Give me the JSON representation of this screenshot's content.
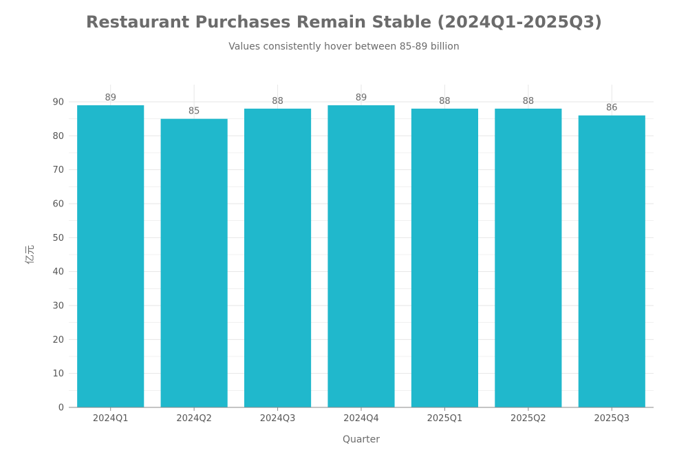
{
  "chart_data": {
    "type": "bar",
    "title": "Restaurant Purchases Remain Stable (2024Q1-2025Q3)",
    "subtitle": "Values consistently hover between 85-89 billion",
    "xlabel": "Quarter",
    "ylabel": "亿元",
    "categories": [
      "2024Q1",
      "2024Q2",
      "2024Q3",
      "2024Q4",
      "2025Q1",
      "2025Q2",
      "2025Q3"
    ],
    "values": [
      89,
      85,
      88,
      89,
      88,
      88,
      86
    ],
    "data_labels": [
      "89",
      "85",
      "88",
      "89",
      "88",
      "88",
      "86"
    ],
    "ylim": [
      0,
      90
    ],
    "yticks": [
      0,
      10,
      20,
      30,
      40,
      50,
      60,
      70,
      80,
      90
    ],
    "grid": true,
    "bar_color": "#20b8cc",
    "grid_color": "#e6e6e6",
    "axis_color": "#888888"
  }
}
